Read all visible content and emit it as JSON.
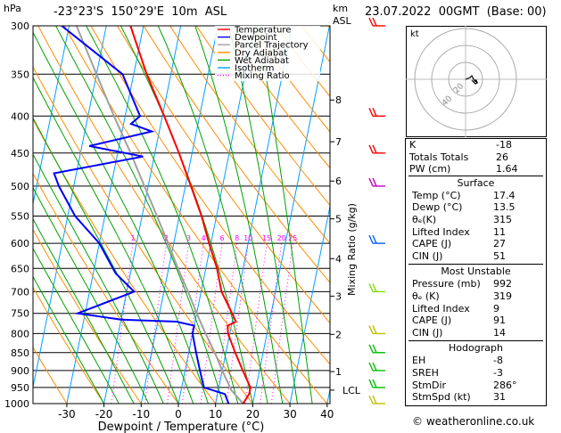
{
  "header": {
    "hpa_label": "hPa",
    "location": "-23°23'S  150°29'E  10m  ASL",
    "km_label": "km",
    "asl_label": "ASL",
    "datetime": "23.07.2022  00GMT  (Base: 00)"
  },
  "footer": {
    "credit": "© weatheronline.co.uk"
  },
  "hodograph": {
    "unit": "kt",
    "ring_labels": [
      "20",
      "40"
    ]
  },
  "colors": {
    "temperature": "#ff0000",
    "dewpoint": "#0000ff",
    "parcel": "#a0a0a0",
    "dry_adiabat": "#ff8c00",
    "wet_adiabat": "#00a000",
    "isotherm": "#00a0ff",
    "mixing_ratio": "#ff00ff"
  },
  "chart_data": {
    "type": "line",
    "title": "Skew-T log-P diagram",
    "xlabel": "Dewpoint / Temperature (°C)",
    "ylabel": "hPa",
    "y2label": "Mixing Ratio (g/kg)",
    "x_ticks": [
      -30,
      -20,
      -10,
      0,
      10,
      20,
      30,
      40
    ],
    "xlim": [
      -37,
      40
    ],
    "ylim": [
      1000,
      300
    ],
    "pressure_levels": [
      300,
      350,
      400,
      450,
      500,
      550,
      600,
      650,
      700,
      750,
      800,
      850,
      900,
      950,
      1000
    ],
    "km_ticks": [
      {
        "label": "1",
        "p": 903
      },
      {
        "label": "2",
        "p": 802
      },
      {
        "label": "3",
        "p": 710
      },
      {
        "label": "4",
        "p": 630
      },
      {
        "label": "5",
        "p": 555
      },
      {
        "label": "6",
        "p": 492
      },
      {
        "label": "7",
        "p": 434
      },
      {
        "label": "8",
        "p": 380
      }
    ],
    "lcl_label": "LCL",
    "lcl_p": 958,
    "mixing_ratio_labels": [
      {
        "label": "1",
        "t": -21
      },
      {
        "label": "2",
        "t": -12
      },
      {
        "label": "3",
        "t": -6
      },
      {
        "label": "4",
        "t": -2
      },
      {
        "label": "6",
        "t": 3
      },
      {
        "label": "8",
        "t": 7
      },
      {
        "label": "10",
        "t": 10
      },
      {
        "label": "15",
        "t": 15
      },
      {
        "label": "20",
        "t": 19
      },
      {
        "label": "25",
        "t": 22
      }
    ],
    "series": [
      {
        "name": "Temperature",
        "points": [
          [
            1000,
            17.4
          ],
          [
            970,
            18.5
          ],
          [
            950,
            18.5
          ],
          [
            925,
            17
          ],
          [
            900,
            15.5
          ],
          [
            850,
            12.5
          ],
          [
            800,
            9.5
          ],
          [
            780,
            9
          ],
          [
            770,
            11
          ],
          [
            750,
            9.5
          ],
          [
            700,
            5.5
          ],
          [
            650,
            3
          ],
          [
            600,
            -0.5
          ],
          [
            550,
            -4
          ],
          [
            500,
            -8.5
          ],
          [
            450,
            -13.5
          ],
          [
            400,
            -19.5
          ],
          [
            350,
            -26.5
          ],
          [
            300,
            -33.5
          ]
        ]
      },
      {
        "name": "Dewpoint",
        "points": [
          [
            1000,
            13.5
          ],
          [
            970,
            12
          ],
          [
            950,
            6
          ],
          [
            925,
            5
          ],
          [
            900,
            4
          ],
          [
            850,
            2
          ],
          [
            800,
            0
          ],
          [
            780,
            0
          ],
          [
            770,
            -5
          ],
          [
            765,
            -20
          ],
          [
            750,
            -32
          ],
          [
            700,
            -18
          ],
          [
            660,
            -24
          ],
          [
            600,
            -30
          ],
          [
            550,
            -38
          ],
          [
            500,
            -44
          ],
          [
            480,
            -46
          ],
          [
            455,
            -23
          ],
          [
            440,
            -38
          ],
          [
            420,
            -22
          ],
          [
            410,
            -28
          ],
          [
            400,
            -26
          ],
          [
            350,
            -33
          ],
          [
            300,
            -52
          ]
        ]
      },
      {
        "name": "Parcel Trajectory",
        "points": [
          [
            1000,
            17.4
          ],
          [
            958,
            13.5
          ],
          [
            900,
            10
          ],
          [
            850,
            7
          ],
          [
            800,
            3.5
          ],
          [
            750,
            0
          ],
          [
            700,
            -3.5
          ],
          [
            650,
            -7.5
          ],
          [
            600,
            -11.5
          ],
          [
            550,
            -16
          ],
          [
            500,
            -21
          ],
          [
            450,
            -26.5
          ],
          [
            400,
            -33
          ],
          [
            350,
            -40
          ],
          [
            300,
            -48
          ]
        ]
      }
    ]
  },
  "legend": {
    "items": [
      {
        "label": "Temperature",
        "color": "#ff0000",
        "style": "solid"
      },
      {
        "label": "Dewpoint",
        "color": "#0000ff",
        "style": "solid"
      },
      {
        "label": "Parcel Trajectory",
        "color": "#a0a0a0",
        "style": "solid"
      },
      {
        "label": "Dry Adiabat",
        "color": "#ff8c00",
        "style": "solid"
      },
      {
        "label": "Wet Adiabat",
        "color": "#00a000",
        "style": "solid"
      },
      {
        "label": "Isotherm",
        "color": "#00a0ff",
        "style": "solid"
      },
      {
        "label": "Mixing Ratio",
        "color": "#ff00ff",
        "style": "dotted"
      }
    ]
  },
  "winds": [
    {
      "p": 300,
      "color": "#ff0000"
    },
    {
      "p": 400,
      "color": "#ff0000"
    },
    {
      "p": 450,
      "color": "#ff0000"
    },
    {
      "p": 500,
      "color": "#c000c0"
    },
    {
      "p": 600,
      "color": "#0060ff"
    },
    {
      "p": 700,
      "color": "#80e000"
    },
    {
      "p": 800,
      "color": "#c0c000"
    },
    {
      "p": 850,
      "color": "#00c000"
    },
    {
      "p": 900,
      "color": "#00c000"
    },
    {
      "p": 950,
      "color": "#00c000"
    },
    {
      "p": 1000,
      "color": "#c0c000"
    }
  ],
  "indices": {
    "basic": [
      {
        "label": "K",
        "value": "-18"
      },
      {
        "label": "Totals Totals",
        "value": "26"
      },
      {
        "label": "PW (cm)",
        "value": "1.64"
      }
    ],
    "surface_title": "Surface",
    "surface": [
      {
        "label": "Temp (°C)",
        "value": "17.4"
      },
      {
        "label": "Dewp (°C)",
        "value": "13.5"
      },
      {
        "label": "θₑ(K)",
        "value": "315"
      },
      {
        "label": "Lifted Index",
        "value": "11"
      },
      {
        "label": "CAPE (J)",
        "value": "27"
      },
      {
        "label": "CIN (J)",
        "value": "51"
      }
    ],
    "unstable_title": "Most Unstable",
    "unstable": [
      {
        "label": "Pressure (mb)",
        "value": "992"
      },
      {
        "label": "θₑ (K)",
        "value": "319"
      },
      {
        "label": "Lifted Index",
        "value": "9"
      },
      {
        "label": "CAPE (J)",
        "value": "91"
      },
      {
        "label": "CIN (J)",
        "value": "14"
      }
    ],
    "hodo_title": "Hodograph",
    "hodo": [
      {
        "label": "EH",
        "value": "-8"
      },
      {
        "label": "SREH",
        "value": "-3"
      },
      {
        "label": "StmDir",
        "value": "286°"
      },
      {
        "label": "StmSpd (kt)",
        "value": "31"
      }
    ]
  }
}
